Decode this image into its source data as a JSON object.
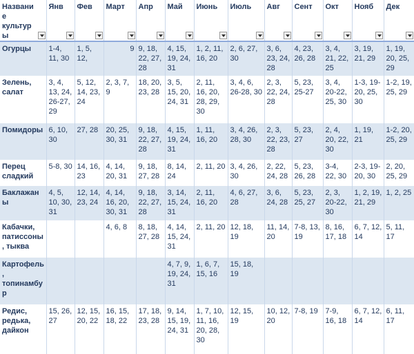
{
  "table": {
    "columns": [
      "Название культуры",
      "Янв",
      "Фев",
      "Март",
      "Апр",
      "Май",
      "Июнь",
      "Июль",
      "Авг",
      "Сент",
      "Окт",
      "Нояб",
      "Дек"
    ],
    "rows": [
      {
        "crop": "Огурцы",
        "cells": [
          "1-4, 11, 30",
          "1, 5, 12,",
          "9",
          "9, 18, 22, 27, 28",
          "4, 15, 19, 24, 31",
          "1, 2, 11, 16, 20",
          "2, 6, 27, 30",
          "3, 6, 23, 24, 28",
          "4, 23, 26, 28",
          "3, 4, 21, 22, 25",
          "3, 19, 21, 29",
          "1, 19, 20, 25, 29"
        ]
      },
      {
        "crop": "Зелень, салат",
        "cells": [
          "3, 4, 13, 24, 26-27, 29",
          "5, 12, 14, 23, 24",
          "2, 3, 7, 9",
          "18, 20, 23, 28",
          "3, 5, 15, 20, 24, 31",
          "2, 11, 16, 20, 28, 29, 30",
          "3, 4, 6, 26-28, 30",
          "2, 3, 22, 24, 28",
          "5, 23, 25-27",
          "3, 4, 20-22, 25, 30",
          "1-3, 19-20, 25, 30",
          "1-2, 19, 25, 29"
        ]
      },
      {
        "crop": "Помидоры",
        "cells": [
          "6, 10, 30",
          "27, 28",
          "20, 25, 30, 31",
          "9, 18, 22, 27, 28",
          "4, 15, 19, 24, 31",
          "1, 11, 16, 20",
          "3, 4, 26, 28, 30",
          "2, 3, 22, 23, 28",
          "5, 23, 27",
          "2, 4, 20, 22, 30",
          "1, 19, 21",
          "1-2, 20, 25, 29"
        ]
      },
      {
        "crop": "Перец сладкий",
        "cells": [
          "5-8, 30",
          "14, 16, 23",
          "4, 14, 20, 31",
          "9, 18, 27, 28",
          "8, 14, 24",
          "2, 11, 20",
          "3, 4, 26, 30",
          "2, 22, 24, 28",
          "5, 23, 26, 28",
          "3-4, 22, 30",
          "2-3, 19-20, 30",
          "2, 20, 25, 29"
        ]
      },
      {
        "crop": "Баклажаны",
        "cells": [
          "4, 5, 10, 30, 31",
          "12, 14, 23, 24",
          "4, 14, 16, 20, 30, 31",
          "9, 18, 22, 27, 28",
          "3, 14, 15, 24, 31",
          "2, 11, 16, 20",
          "4, 6, 27, 28",
          "3, 6, 24, 28",
          "5, 23, 25, 27",
          "2, 3, 20-22, 30",
          "1, 2, 19, 21, 29",
          "1, 2, 25"
        ]
      },
      {
        "crop": "Кабачки, патиссоны, тыква",
        "cells": [
          null,
          null,
          "4, 6, 8",
          "8, 18, 27, 28",
          "4, 14, 15, 24, 31",
          "2, 11, 20",
          "12, 18, 19",
          "11, 14, 20",
          "7-8, 13, 19",
          "8, 16, 17, 18",
          "6, 7, 12, 14",
          "5, 11, 17"
        ]
      },
      {
        "crop": "Картофель, топинамбур",
        "cells": [
          null,
          null,
          null,
          null,
          "4, 7, 9, 19, 24, 31",
          "1, 6, 7, 15, 16",
          "15, 18, 19",
          null,
          null,
          null,
          null,
          null
        ]
      },
      {
        "crop": "Редис, редька, дайкон",
        "cells": [
          "15, 26, 27",
          "12, 15, 20, 22",
          "16, 15, 18, 22",
          "17, 18, 23, 28",
          "9, 14, 15, 19, 24, 31",
          "1, 7, 10, 11, 16, 20, 28, 30",
          "12, 15, 19",
          "10, 12, 20",
          "7-8, 19",
          "7-9, 16, 18",
          "6, 7, 12, 14",
          "6, 11, 17"
        ]
      }
    ]
  }
}
